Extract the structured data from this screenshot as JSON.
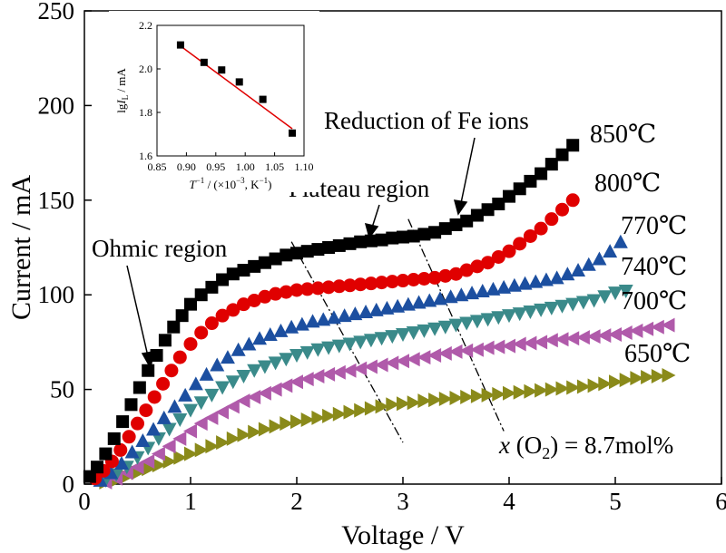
{
  "chart_data": [
    {
      "type": "scatter",
      "xlabel": "Voltage / V",
      "ylabel": "Current / mA",
      "xlim": [
        0,
        6
      ],
      "ylim": [
        0,
        250
      ],
      "xticks": [
        0,
        1,
        2,
        3,
        4,
        5,
        6
      ],
      "yticks": [
        0,
        50,
        100,
        150,
        200,
        250
      ],
      "grid": false,
      "series": [
        {
          "name": "850℃",
          "marker": "square",
          "color": "#000000",
          "x": [
            0.05,
            0.12,
            0.2,
            0.28,
            0.36,
            0.44,
            0.52,
            0.6,
            0.68,
            0.76,
            0.84,
            0.92,
            1.0,
            1.1,
            1.2,
            1.3,
            1.4,
            1.5,
            1.6,
            1.7,
            1.8,
            1.9,
            2.0,
            2.1,
            2.2,
            2.3,
            2.4,
            2.5,
            2.6,
            2.7,
            2.8,
            2.9,
            3.0,
            3.1,
            3.2,
            3.3,
            3.4,
            3.5,
            3.6,
            3.7,
            3.8,
            3.9,
            4.0,
            4.1,
            4.2,
            4.3,
            4.4,
            4.5,
            4.6
          ],
          "y": [
            4,
            9,
            16,
            24,
            33,
            42,
            51,
            60,
            68,
            76,
            83,
            89,
            95,
            100,
            104,
            108,
            111,
            113,
            115,
            117,
            119,
            121,
            122,
            123,
            124,
            125,
            126,
            127,
            128,
            128.5,
            129,
            130,
            130.5,
            131,
            132,
            133,
            135,
            137,
            139,
            142,
            145,
            148,
            152,
            156,
            160,
            164,
            169,
            174,
            179
          ]
        },
        {
          "name": "800℃",
          "marker": "circle",
          "color": "#e00000",
          "x": [
            0.1,
            0.18,
            0.26,
            0.34,
            0.42,
            0.5,
            0.58,
            0.66,
            0.74,
            0.82,
            0.9,
            1.0,
            1.1,
            1.2,
            1.3,
            1.4,
            1.5,
            1.6,
            1.7,
            1.8,
            1.9,
            2.0,
            2.1,
            2.2,
            2.3,
            2.4,
            2.5,
            2.6,
            2.7,
            2.8,
            2.9,
            3.0,
            3.1,
            3.2,
            3.3,
            3.4,
            3.5,
            3.6,
            3.7,
            3.8,
            3.9,
            4.0,
            4.1,
            4.2,
            4.3,
            4.4,
            4.5,
            4.6
          ],
          "y": [
            3,
            7,
            12,
            18,
            25,
            32,
            39,
            46,
            53,
            60,
            67,
            74,
            80,
            85,
            89,
            92,
            95,
            97,
            99,
            100.5,
            101.5,
            102.5,
            103,
            103.5,
            104,
            104.5,
            105,
            105.5,
            106,
            106.5,
            107,
            107.5,
            108,
            108.5,
            109,
            110,
            111,
            113,
            115,
            117,
            120,
            123,
            127,
            131,
            135,
            140,
            145,
            150
          ]
        },
        {
          "name": "770℃",
          "marker": "triangle-up",
          "color": "#1c4fa0",
          "x": [
            0.15,
            0.25,
            0.35,
            0.45,
            0.55,
            0.65,
            0.75,
            0.85,
            0.95,
            1.05,
            1.15,
            1.25,
            1.35,
            1.45,
            1.55,
            1.65,
            1.75,
            1.85,
            1.95,
            2.05,
            2.15,
            2.25,
            2.35,
            2.45,
            2.55,
            2.65,
            2.75,
            2.85,
            2.95,
            3.05,
            3.15,
            3.25,
            3.35,
            3.45,
            3.55,
            3.65,
            3.75,
            3.85,
            3.95,
            4.05,
            4.15,
            4.25,
            4.35,
            4.45,
            4.55,
            4.65,
            4.75,
            4.85,
            4.95,
            5.05
          ],
          "y": [
            2,
            6,
            11,
            17,
            23,
            29,
            35,
            41,
            47,
            53,
            58,
            63,
            67,
            71,
            74,
            77,
            79,
            81,
            83,
            84.5,
            86,
            87,
            88,
            89,
            90,
            91,
            92,
            93,
            94,
            95,
            96,
            97,
            98,
            99,
            100,
            101,
            102,
            103,
            104,
            105,
            106,
            107,
            108,
            109,
            111,
            113,
            116,
            119,
            123,
            128
          ]
        },
        {
          "name": "740℃",
          "marker": "triangle-down",
          "color": "#3a8a8a",
          "x": [
            0.2,
            0.3,
            0.4,
            0.5,
            0.6,
            0.7,
            0.8,
            0.9,
            1.0,
            1.1,
            1.2,
            1.3,
            1.4,
            1.5,
            1.6,
            1.7,
            1.8,
            1.9,
            2.0,
            2.1,
            2.2,
            2.3,
            2.4,
            2.5,
            2.6,
            2.7,
            2.8,
            2.9,
            3.0,
            3.1,
            3.2,
            3.3,
            3.4,
            3.5,
            3.6,
            3.7,
            3.8,
            3.9,
            4.0,
            4.1,
            4.2,
            4.3,
            4.4,
            4.5,
            4.6,
            4.7,
            4.8,
            4.9,
            5.0,
            5.1
          ],
          "y": [
            2,
            5,
            9,
            14,
            19,
            24,
            29,
            34,
            39,
            43,
            47,
            51,
            54,
            57,
            60,
            62,
            64,
            66,
            68,
            69.5,
            71,
            72,
            73,
            74,
            75,
            76,
            77,
            78,
            79,
            80,
            81,
            82,
            83,
            84,
            85,
            86,
            87,
            88,
            89,
            90,
            91,
            92,
            93,
            94,
            95,
            96,
            97,
            99,
            101,
            102
          ]
        },
        {
          "name": "700℃",
          "marker": "triangle-left",
          "color": "#b05aaa",
          "x": [
            0.2,
            0.3,
            0.4,
            0.5,
            0.6,
            0.7,
            0.8,
            0.9,
            1.0,
            1.1,
            1.2,
            1.3,
            1.4,
            1.5,
            1.6,
            1.7,
            1.8,
            1.9,
            2.0,
            2.1,
            2.2,
            2.3,
            2.4,
            2.5,
            2.6,
            2.7,
            2.8,
            2.9,
            3.0,
            3.1,
            3.2,
            3.3,
            3.4,
            3.5,
            3.6,
            3.7,
            3.8,
            3.9,
            4.0,
            4.1,
            4.2,
            4.3,
            4.4,
            4.5,
            4.6,
            4.7,
            4.8,
            4.9,
            5.0,
            5.1,
            5.2,
            5.3,
            5.4,
            5.5
          ],
          "y": [
            1,
            3,
            6,
            9,
            12,
            16,
            20,
            24,
            28,
            32,
            35,
            38,
            41,
            44,
            46,
            48,
            50,
            52,
            54,
            55.5,
            57,
            58,
            59,
            60,
            61,
            62,
            63,
            64,
            65,
            66,
            67,
            68,
            69,
            70,
            70.5,
            71,
            72,
            72.5,
            73,
            74,
            74.5,
            75,
            76,
            76.5,
            77,
            77.5,
            78,
            78.5,
            79,
            80,
            81,
            82,
            83,
            84
          ]
        },
        {
          "name": "650℃",
          "marker": "triangle-right",
          "color": "#8a8a1a",
          "x": [
            0.2,
            0.3,
            0.4,
            0.5,
            0.6,
            0.7,
            0.8,
            0.9,
            1.0,
            1.1,
            1.2,
            1.3,
            1.4,
            1.5,
            1.6,
            1.7,
            1.8,
            1.9,
            2.0,
            2.1,
            2.2,
            2.3,
            2.4,
            2.5,
            2.6,
            2.7,
            2.8,
            2.9,
            3.0,
            3.1,
            3.2,
            3.3,
            3.4,
            3.5,
            3.6,
            3.7,
            3.8,
            3.9,
            4.0,
            4.1,
            4.2,
            4.3,
            4.4,
            4.5,
            4.6,
            4.7,
            4.8,
            4.9,
            5.0,
            5.1,
            5.2,
            5.3,
            5.4,
            5.5
          ],
          "y": [
            1,
            2,
            4,
            6,
            8,
            10,
            12,
            14,
            16,
            18,
            20,
            22,
            24,
            26,
            27.5,
            29,
            30.5,
            32,
            33,
            34,
            35,
            36,
            37,
            38,
            39,
            40,
            41,
            42,
            42.5,
            43,
            44,
            44.5,
            45,
            45.5,
            46,
            46.5,
            47,
            47.5,
            48,
            48.5,
            49,
            49.5,
            50,
            50.5,
            51,
            51.5,
            52,
            53,
            54,
            55,
            56,
            56.5,
            57,
            57.5
          ]
        }
      ],
      "annotations": [
        {
          "text": "Ohmic region"
        },
        {
          "text": "Plateau region"
        },
        {
          "text": "Reduction of  Fe ions"
        },
        {
          "text_parts": [
            "x",
            " (O",
            "2",
            ") = 8.7mol%"
          ]
        }
      ],
      "guide_lines": [
        {
          "style": "dash-dot",
          "from": [
            1.95,
            128
          ],
          "to": [
            3.0,
            22
          ]
        },
        {
          "style": "dash-dot",
          "from": [
            3.05,
            140
          ],
          "to": [
            3.95,
            28
          ]
        }
      ]
    },
    {
      "type": "scatter",
      "xlabel_parts": [
        "T",
        "−1",
        " / (×10",
        "−3",
        ", K",
        "−1",
        ")"
      ],
      "ylabel_parts": [
        "lg",
        "I",
        "L",
        " / mA"
      ],
      "xlim": [
        0.85,
        1.1
      ],
      "ylim": [
        1.6,
        2.2
      ],
      "xticks": [
        "0.85",
        "0.90",
        "0.95",
        "1.00",
        "1.05",
        "1.10"
      ],
      "yticks": [
        "1.6",
        "1.8",
        "2.0",
        "2.2"
      ],
      "points": {
        "x": [
          0.89,
          0.93,
          0.96,
          0.99,
          1.03,
          1.08
        ],
        "y": [
          2.11,
          2.03,
          1.995,
          1.94,
          1.86,
          1.705
        ]
      },
      "fit_line": {
        "color": "#e00000",
        "from": [
          0.885,
          2.115
        ],
        "to": [
          1.08,
          1.725
        ]
      }
    }
  ]
}
